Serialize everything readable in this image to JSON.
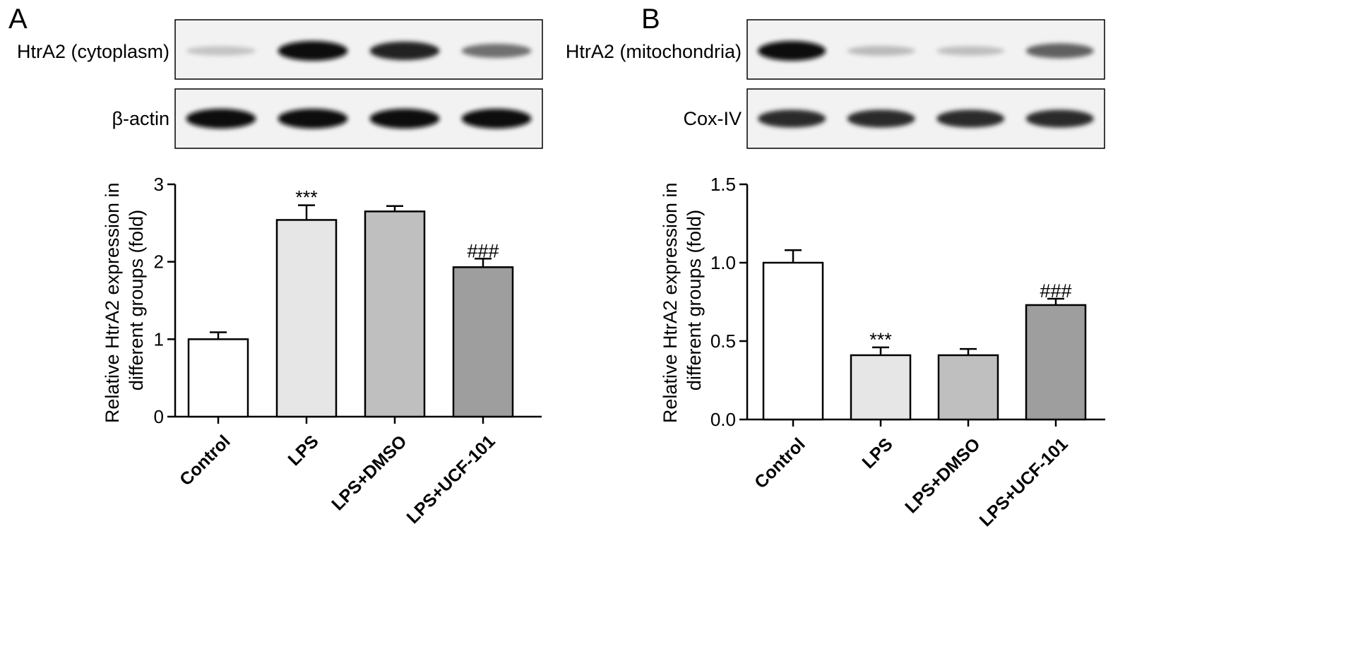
{
  "panels": [
    {
      "letter": "A",
      "blots": [
        {
          "label": "HtrA2 (cytoplasm)",
          "intensities": [
            0.18,
            1.0,
            0.9,
            0.55
          ]
        },
        {
          "label": "β-actin",
          "intensities": [
            1.0,
            1.0,
            1.0,
            1.0
          ]
        }
      ]
    },
    {
      "letter": "B",
      "blots": [
        {
          "label": "HtrA2 (mitochondria)",
          "intensities": [
            1.0,
            0.22,
            0.2,
            0.62
          ]
        },
        {
          "label": "Cox-IV",
          "intensities": [
            0.85,
            0.85,
            0.85,
            0.85
          ]
        }
      ]
    }
  ],
  "chart_data": [
    {
      "type": "bar",
      "ylabel": "Relative HtrA2 expression in different groups (fold)",
      "ylim": [
        0,
        3
      ],
      "yticks": [
        "0",
        "1",
        "2",
        "3"
      ],
      "categories": [
        "Control",
        "LPS",
        "LPS+DMSO",
        "LPS+UCF-101"
      ],
      "values": [
        1.0,
        2.54,
        2.65,
        1.93
      ],
      "errors": [
        0.09,
        0.19,
        0.07,
        0.11
      ],
      "annotations": [
        "",
        "***",
        "",
        "###"
      ],
      "bar_colors": [
        "#ffffff",
        "#e6e6e6",
        "#bfbfbf",
        "#9e9e9e"
      ]
    },
    {
      "type": "bar",
      "ylabel": "Relative HtrA2 expression in different groups (fold)",
      "ylim": [
        0,
        1.5
      ],
      "yticks": [
        "0.0",
        "0.5",
        "1.0",
        "1.5"
      ],
      "categories": [
        "Control",
        "LPS",
        "LPS+DMSO",
        "LPS+UCF-101"
      ],
      "values": [
        1.0,
        0.41,
        0.41,
        0.73
      ],
      "errors": [
        0.08,
        0.05,
        0.04,
        0.04
      ],
      "annotations": [
        "",
        "***",
        "",
        "###"
      ],
      "bar_colors": [
        "#ffffff",
        "#e6e6e6",
        "#bfbfbf",
        "#9e9e9e"
      ]
    }
  ]
}
